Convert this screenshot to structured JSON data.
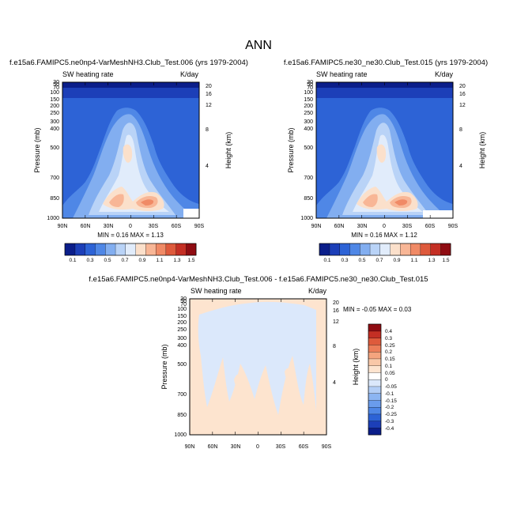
{
  "figure_title": "ANN",
  "colors": {
    "scale11": [
      "#0b1e8a",
      "#1c3fb8",
      "#2d63d6",
      "#4f87e6",
      "#82aef0",
      "#b9d3f7",
      "#e1ecfb",
      "#fbe0cb",
      "#f8b696",
      "#f08a66",
      "#de5a3c",
      "#c42f24",
      "#8f0c12"
    ],
    "scale_diff": [
      "#0b1e8a",
      "#1c3fb8",
      "#2d63d6",
      "#4f87e6",
      "#6a9cec",
      "#8cb5f2",
      "#b3cef6",
      "#dbe8fb",
      "#ffffff",
      "#fde4cf",
      "#f9c8a8",
      "#f4a47e",
      "#ec7d59",
      "#de5a3c",
      "#c42f24",
      "#8f0c12"
    ]
  },
  "panels": [
    {
      "title": "f.e15a6.FAMIPC5.ne0np4-VarMeshNH3.Club_Test.006 (yrs 1979-2004)",
      "left_label": "SW heating rate",
      "right_label": "K/day",
      "ylabel": "Pressure (mb)",
      "y2label": "Height (km)",
      "stats": "MIN =  0.16  MAX =  1.13"
    },
    {
      "title": "f.e15a6.FAMIPC5.ne30_ne30.Club_Test.015 (yrs 1979-2004)",
      "left_label": "SW heating rate",
      "right_label": "K/day",
      "ylabel": "Pressure (mb)",
      "y2label": "Height (km)",
      "stats": "MIN =  0.16  MAX =  1.12"
    },
    {
      "title": "f.e15a6.FAMIPC5.ne0np4-VarMeshNH3.Club_Test.006 - f.e15a6.FAMIPC5.ne30_ne30.Club_Test.015",
      "left_label": "SW heating rate",
      "right_label": "K/day",
      "ylabel": "Pressure (mb)",
      "y2label": "Height (km)",
      "stats": "MIN = -0.05  MAX =  0.03"
    }
  ],
  "chart_data": [
    {
      "type": "heatmap",
      "title": "f.e15a6.FAMIPC5.ne0np4-VarMeshNH3.Club_Test.006 (yrs 1979-2004)",
      "variable": "SW heating rate",
      "units": "K/day",
      "xlabel": "",
      "ylabel": "Pressure (mb)",
      "y2label": "Height (km)",
      "x_ticks": [
        "90N",
        "60N",
        "30N",
        "0",
        "30S",
        "60S",
        "90S"
      ],
      "y_ticks": [
        "1000",
        "850",
        "700",
        "500",
        "400",
        "300",
        "250",
        "200",
        "150",
        "100",
        "70",
        "50",
        "30",
        "20",
        "10"
      ],
      "y2_ticks": [
        "4",
        "8",
        "12",
        "16",
        "20"
      ],
      "min": 0.16,
      "max": 1.13,
      "colorbar_levels": [
        "0.1",
        "0.3",
        "0.5",
        "0.7",
        "0.9",
        "1.1",
        "1.3",
        "1.5"
      ],
      "colorbar_steps": [
        0.1,
        0.2,
        0.3,
        0.4,
        0.5,
        0.6,
        0.7,
        0.8,
        0.9,
        1.0,
        1.1,
        1.2,
        1.3,
        1.4,
        1.5
      ]
    },
    {
      "type": "heatmap",
      "title": "f.e15a6.FAMIPC5.ne30_ne30.Club_Test.015 (yrs 1979-2004)",
      "variable": "SW heating rate",
      "units": "K/day",
      "xlabel": "",
      "ylabel": "Pressure (mb)",
      "y2label": "Height (km)",
      "x_ticks": [
        "90N",
        "60N",
        "30N",
        "0",
        "30S",
        "60S",
        "90S"
      ],
      "y_ticks": [
        "1000",
        "850",
        "700",
        "500",
        "400",
        "300",
        "250",
        "200",
        "150",
        "100",
        "70",
        "50",
        "30",
        "20",
        "10"
      ],
      "y2_ticks": [
        "4",
        "8",
        "12",
        "16",
        "20"
      ],
      "min": 0.16,
      "max": 1.12,
      "colorbar_levels": [
        "0.1",
        "0.3",
        "0.5",
        "0.7",
        "0.9",
        "1.1",
        "1.3",
        "1.5"
      ]
    },
    {
      "type": "heatmap",
      "title": "f.e15a6.FAMIPC5.ne0np4-VarMeshNH3.Club_Test.006 - f.e15a6.FAMIPC5.ne30_ne30.Club_Test.015",
      "variable": "SW heating rate",
      "units": "K/day",
      "xlabel": "",
      "ylabel": "Pressure (mb)",
      "y2label": "Height (km)",
      "x_ticks": [
        "90N",
        "60N",
        "30N",
        "0",
        "30S",
        "60S",
        "90S"
      ],
      "y_ticks": [
        "1000",
        "850",
        "700",
        "500",
        "400",
        "300",
        "250",
        "200",
        "150",
        "100",
        "70",
        "50",
        "30",
        "20",
        "10"
      ],
      "y2_ticks": [
        "4",
        "8",
        "12",
        "16",
        "20"
      ],
      "min": -0.05,
      "max": 0.03,
      "colorbar_levels": [
        "0.4",
        "0.3",
        "0.25",
        "0.2",
        "0.15",
        "0.1",
        "0.05",
        "0",
        "-0.05",
        "-0.1",
        "-0.15",
        "-0.2",
        "-0.25",
        "-0.3",
        "-0.4"
      ]
    }
  ]
}
